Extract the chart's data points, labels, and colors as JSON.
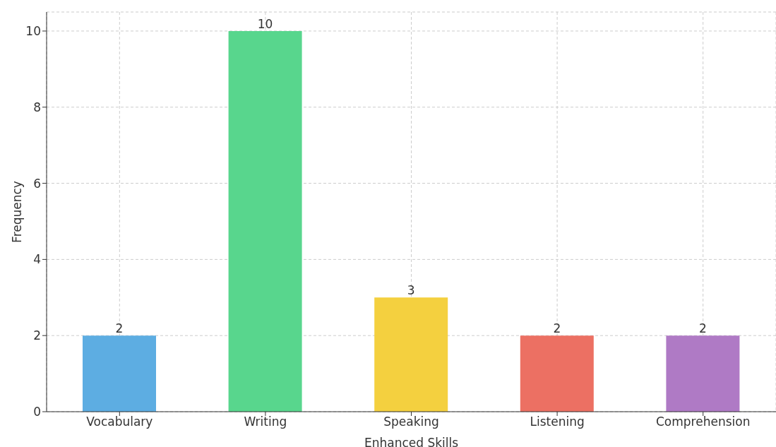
{
  "chart_data": {
    "type": "bar",
    "xlabel": "Enhanced Skills",
    "ylabel": "Frequency",
    "categories": [
      "Vocabulary",
      "Writing",
      "Speaking",
      "Listening",
      "Comprehension"
    ],
    "values": [
      2,
      10,
      3,
      2,
      2
    ],
    "colors": [
      "#5dade2",
      "#58d68d",
      "#f4d03f",
      "#ec7063",
      "#af7ac5"
    ],
    "ylim": [
      0,
      10.5
    ],
    "yticks": [
      0,
      2,
      4,
      6,
      8,
      10
    ],
    "grid": true,
    "data_labels": true
  }
}
